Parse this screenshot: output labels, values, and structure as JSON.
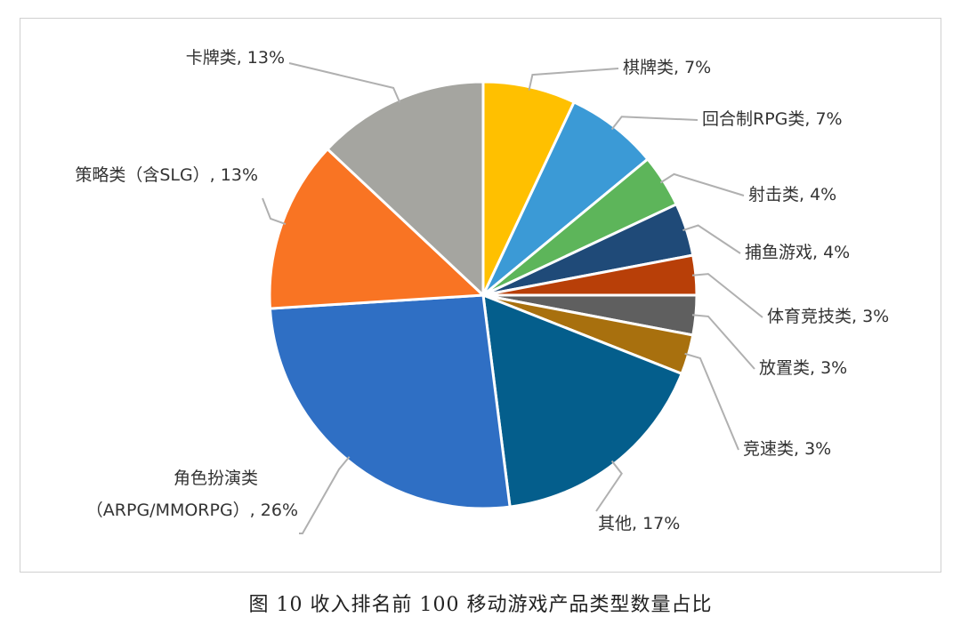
{
  "chart_data": {
    "type": "pie",
    "caption": "图 10 收入排名前 100 移动游戏产品类型数量占比",
    "slices": [
      {
        "label": "棋牌类, 7%",
        "value": 7,
        "color": "#FFC000"
      },
      {
        "label": "回合制RPG类, 7%",
        "value": 7,
        "color": "#3B9AD6"
      },
      {
        "label": "射击类, 4%",
        "value": 4,
        "color": "#5DB55A"
      },
      {
        "label": "捕鱼游戏, 4%",
        "value": 4,
        "color": "#1F4A78"
      },
      {
        "label": "体育竞技类, 3%",
        "value": 3,
        "color": "#B83F08"
      },
      {
        "label": "放置类, 3%",
        "value": 3,
        "color": "#5F5F5F"
      },
      {
        "label": "竞速类, 3%",
        "value": 3,
        "color": "#A8700E"
      },
      {
        "label": "其他, 17%",
        "value": 17,
        "color": "#045E8C"
      },
      {
        "label_lines": [
          "角色扮演类",
          "（ARPG/MMORPG）, 26%"
        ],
        "value": 26,
        "color": "#2F6FC4"
      },
      {
        "label": "策略类（含SLG）, 13%",
        "value": 13,
        "color": "#F97423"
      },
      {
        "label": "卡牌类, 13%",
        "value": 13,
        "color": "#A5A5A0"
      }
    ]
  }
}
